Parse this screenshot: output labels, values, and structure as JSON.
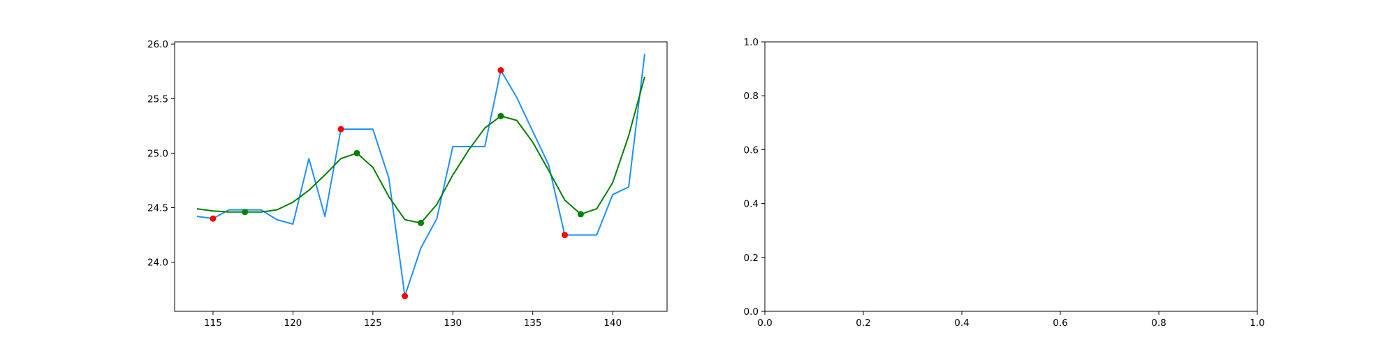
{
  "chart_data": [
    {
      "type": "line",
      "title": "",
      "xlabel": "",
      "ylabel": "",
      "xlim": [
        112.6,
        143.4
      ],
      "ylim": [
        23.55,
        26.02
      ],
      "xticks": [
        115,
        120,
        125,
        130,
        135,
        140
      ],
      "yticks": [
        24.0,
        24.5,
        25.0,
        25.5,
        26.0
      ],
      "xtick_labels": [
        "115",
        "120",
        "125",
        "130",
        "135",
        "140"
      ],
      "ytick_labels": [
        "24.0",
        "24.5",
        "25.0",
        "25.5",
        "26.0"
      ],
      "grid": false,
      "series": [
        {
          "role": "raw",
          "color": "#1e90ff",
          "x": [
            114,
            115,
            116,
            117,
            118,
            119,
            120,
            121,
            122,
            123,
            124,
            125,
            126,
            127,
            128,
            129,
            130,
            131,
            132,
            133,
            134,
            135,
            136,
            137,
            138,
            139,
            140,
            141,
            142
          ],
          "y": [
            24.42,
            24.4,
            24.48,
            24.48,
            24.48,
            24.39,
            24.35,
            24.95,
            24.42,
            25.22,
            25.22,
            25.22,
            24.77,
            23.69,
            24.13,
            24.4,
            25.06,
            25.06,
            25.06,
            25.76,
            25.51,
            25.2,
            24.89,
            24.25,
            24.25,
            24.25,
            24.62,
            24.69,
            25.91
          ]
        },
        {
          "role": "smoothed",
          "color": "#008000",
          "x": [
            114,
            115,
            116,
            117,
            118,
            119,
            120,
            121,
            122,
            123,
            124,
            125,
            126,
            127,
            128,
            129,
            130,
            131,
            132,
            133,
            134,
            135,
            136,
            137,
            138,
            139,
            140,
            141,
            142
          ],
          "y": [
            24.49,
            24.47,
            24.46,
            24.46,
            24.46,
            24.48,
            24.55,
            24.66,
            24.8,
            24.95,
            25.0,
            24.87,
            24.6,
            24.39,
            24.36,
            24.53,
            24.8,
            25.03,
            25.23,
            25.34,
            25.3,
            25.1,
            24.84,
            24.57,
            24.44,
            24.49,
            24.73,
            25.16,
            25.7
          ]
        },
        {
          "role": "peaks-and-troughs",
          "color": "#ff0000",
          "marker": "point",
          "x": [
            115,
            123,
            127,
            133,
            137
          ],
          "y": [
            24.4,
            25.22,
            23.69,
            25.76,
            24.25
          ]
        },
        {
          "role": "smoothed-extrema",
          "color": "#008000",
          "marker": "point",
          "x": [
            117,
            124,
            128,
            133,
            138
          ],
          "y": [
            24.46,
            25.0,
            24.36,
            25.34,
            24.44
          ]
        }
      ]
    },
    {
      "type": "line",
      "title": "",
      "xlabel": "",
      "ylabel": "",
      "xlim": [
        0.0,
        1.0
      ],
      "ylim": [
        0.0,
        1.0
      ],
      "xticks": [
        0.0,
        0.2,
        0.4,
        0.6,
        0.8,
        1.0
      ],
      "yticks": [
        0.0,
        0.2,
        0.4,
        0.6,
        0.8,
        1.0
      ],
      "xtick_labels": [
        "0.0",
        "0.2",
        "0.4",
        "0.6",
        "0.8",
        "1.0"
      ],
      "ytick_labels": [
        "0.0",
        "0.2",
        "0.4",
        "0.6",
        "0.8",
        "1.0"
      ],
      "grid": false,
      "series": []
    }
  ]
}
